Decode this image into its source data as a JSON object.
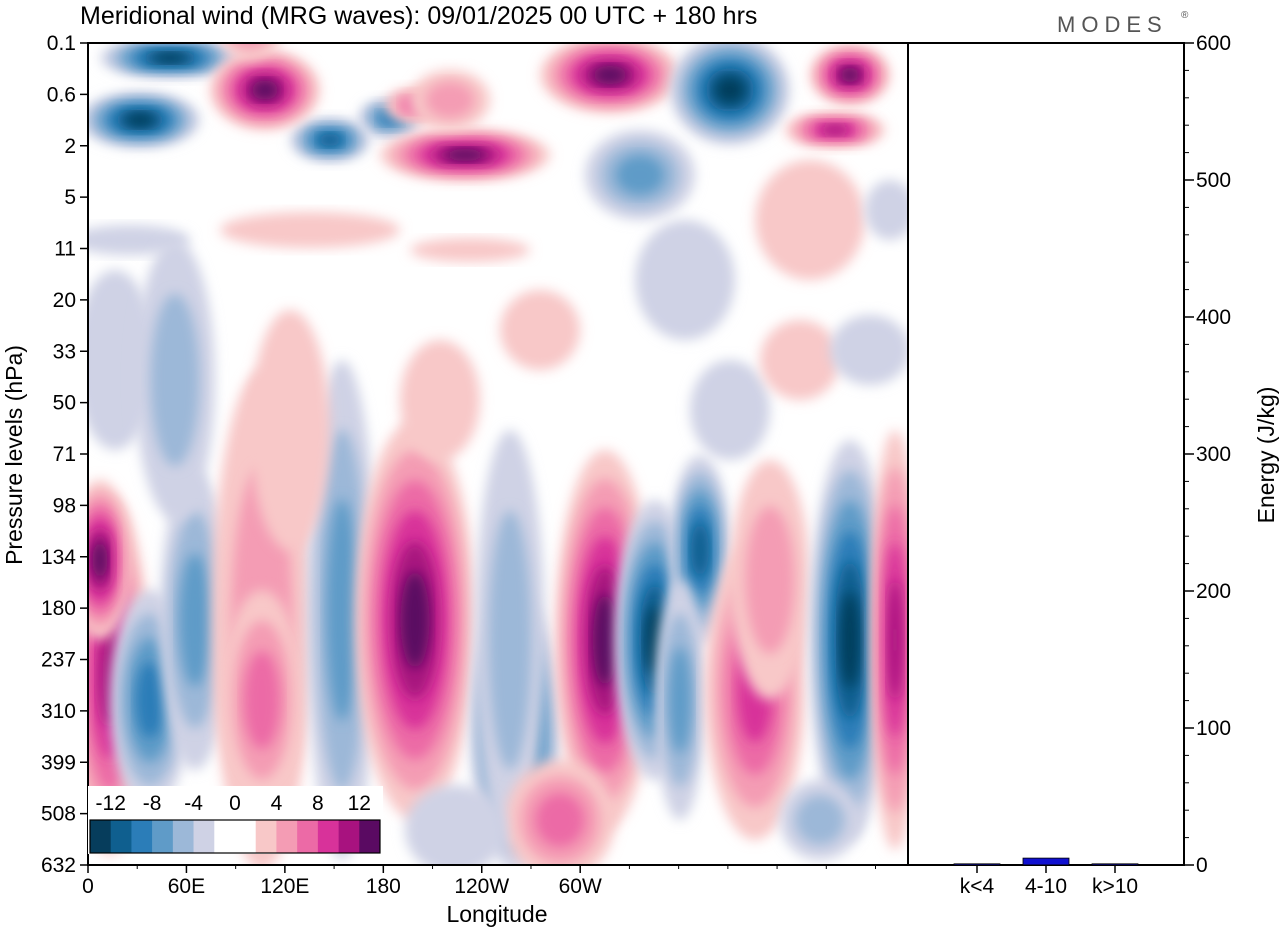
{
  "title": "Meridional wind (MRG waves):  09/01/2025  00 UTC  + 180 hrs",
  "brand": "MODES",
  "brand_mark": "®",
  "chart_data": [
    {
      "type": "heatmap",
      "xlabel": "Longitude",
      "ylabel": "Pressure levels (hPa)",
      "x_ticks": [
        "0",
        "60E",
        "120E",
        "180",
        "120W",
        "60W"
      ],
      "y_ticks": [
        "0.1",
        "0.6",
        "2",
        "5",
        "11",
        "20",
        "33",
        "50",
        "71",
        "98",
        "134",
        "180",
        "237",
        "310",
        "399",
        "508",
        "632"
      ],
      "colorbar": {
        "labels": [
          "-12",
          "-8",
          "-4",
          "0",
          "4",
          "8",
          "12"
        ],
        "levels": [
          -14,
          -12,
          -10,
          -8,
          -6,
          -4,
          -2,
          2,
          4,
          6,
          8,
          10,
          12,
          14
        ],
        "colors": [
          "#063d5c",
          "#0f5f8f",
          "#2b7db8",
          "#5f9bc8",
          "#9cb8d8",
          "#cfd2e5",
          "#ffffff",
          "#ffffff",
          "#f8c8c8",
          "#f49cb4",
          "#ec6aa6",
          "#d8329a",
          "#a8127f",
          "#5a0a62"
        ]
      },
      "colors": {
        "neg_strong": "#063d5c",
        "neg_weak": "#cfd2e5",
        "pos_weak": "#f8c8c8",
        "pos_strong": "#5a0a62"
      }
    },
    {
      "type": "bar",
      "categories": [
        "k<4",
        "4-10",
        "k>10"
      ],
      "values": [
        0.5,
        5,
        0.5
      ],
      "ylabel": "Energy (J/kg)",
      "ylim": [
        0,
        600
      ],
      "y_ticks": [
        "0",
        "100",
        "200",
        "300",
        "400",
        "500",
        "600"
      ],
      "bar_color": "#1010d0"
    }
  ]
}
